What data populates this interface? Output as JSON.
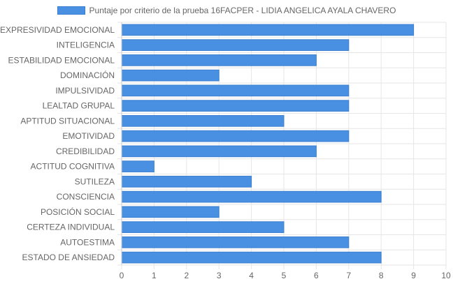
{
  "chart_data": {
    "type": "bar",
    "orientation": "horizontal",
    "categories": [
      "EXPRESIVIDAD EMOCIONAL",
      "INTELIGENCIA",
      "ESTABILIDAD EMOCIONAL",
      "DOMINACIÓN",
      "IMPULSIVIDAD",
      "LEALTAD GRUPAL",
      "APTITUD SITUACIONAL",
      "EMOTIVIDAD",
      "CREDIBILIDAD",
      "ACTITUD COGNITIVA",
      "SUTILEZA",
      "CONSCIENCIA",
      "POSICIÓN SOCIAL",
      "CERTEZA INDIVIDUAL",
      "AUTOESTIMA",
      "ESTADO DE ANSIEDAD"
    ],
    "series": [
      {
        "name": "Puntaje por criterio de la prueba 16FACPER - LIDIA ANGELICA AYALA CHAVERO",
        "values": [
          9,
          7,
          6,
          3,
          7,
          7,
          5,
          7,
          6,
          1,
          4,
          8,
          3,
          5,
          7,
          8
        ]
      }
    ],
    "xlim": [
      0,
      10
    ],
    "x_ticks": [
      "0",
      "1",
      "2",
      "3",
      "4",
      "5",
      "6",
      "7",
      "8",
      "9",
      "10"
    ],
    "grid": true,
    "legend_position": "top",
    "colors": {
      "bar_fill": "#4a90e2",
      "bar_border": "#3a7fd0",
      "grid": "#e6e6e6",
      "text": "#666666"
    }
  }
}
